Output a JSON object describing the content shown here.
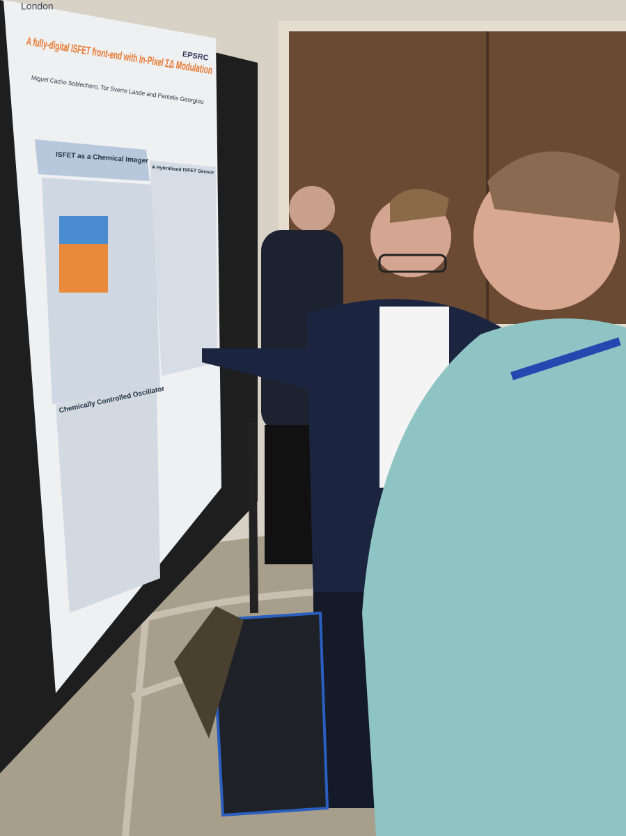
{
  "poster": {
    "institution": "London",
    "title": "A fully-digital ISFET front-end with In-Pixel ΣΔ Modulation",
    "logo": "EPSRC",
    "authors": "Miguel Cacho Soblechero, Tor Sverre Lande and Pantelis Georgiou",
    "sections": [
      "ISFET as a Chemical Imager",
      "A Hybridised ISFET Sensor",
      "Chemically Controlled Oscillator"
    ]
  }
}
